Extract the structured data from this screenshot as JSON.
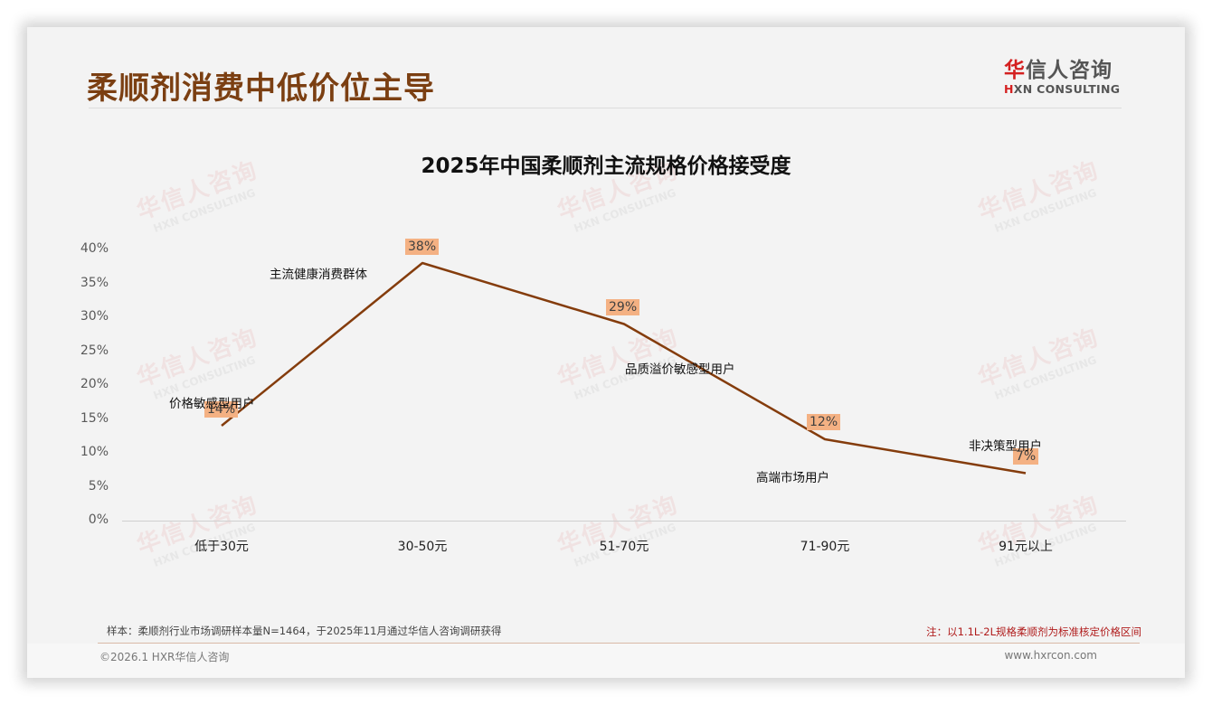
{
  "header": {
    "page_title": "柔顺剂消费中低价位主导",
    "logo": {
      "cn_first": "华",
      "cn_rest": "信人咨询",
      "en_first": "H",
      "en_rest": "XN CONSULTING"
    }
  },
  "watermark": {
    "cn": "华信人咨询",
    "en": "HXN CONSULTING"
  },
  "chart_data": {
    "type": "line",
    "title": "2025年中国柔顺剂主流规格价格接受度",
    "categories": [
      "低于30元",
      "30-50元",
      "51-70元",
      "71-90元",
      "91元以上"
    ],
    "values": [
      14,
      38,
      29,
      12,
      7
    ],
    "value_labels": [
      "14%",
      "38%",
      "29%",
      "12%",
      "7%"
    ],
    "annotations": [
      "价格敏感型用户",
      "主流健康消费群体",
      "品质溢价敏感型用户",
      "高端市场用户",
      "非决策型用户"
    ],
    "yticks": [
      "40%",
      "35%",
      "30%",
      "25%",
      "20%",
      "15%",
      "10%",
      "5%",
      "0%"
    ],
    "ylim": [
      0,
      40
    ],
    "xlabel": "",
    "ylabel": "",
    "grid": false,
    "legend": "none",
    "line_color": "#843c0c",
    "label_bg_color": "#f4b183"
  },
  "footer": {
    "sample": "样本：柔顺剂行业市场调研样本量N=1464，于2025年11月通过华信人咨询调研获得",
    "note": "注：以1.1L-2L规格柔顺剂为标准核定价格区间",
    "copyright": "©2026.1 HXR华信人咨询",
    "website": "www.hxrcon.com"
  }
}
